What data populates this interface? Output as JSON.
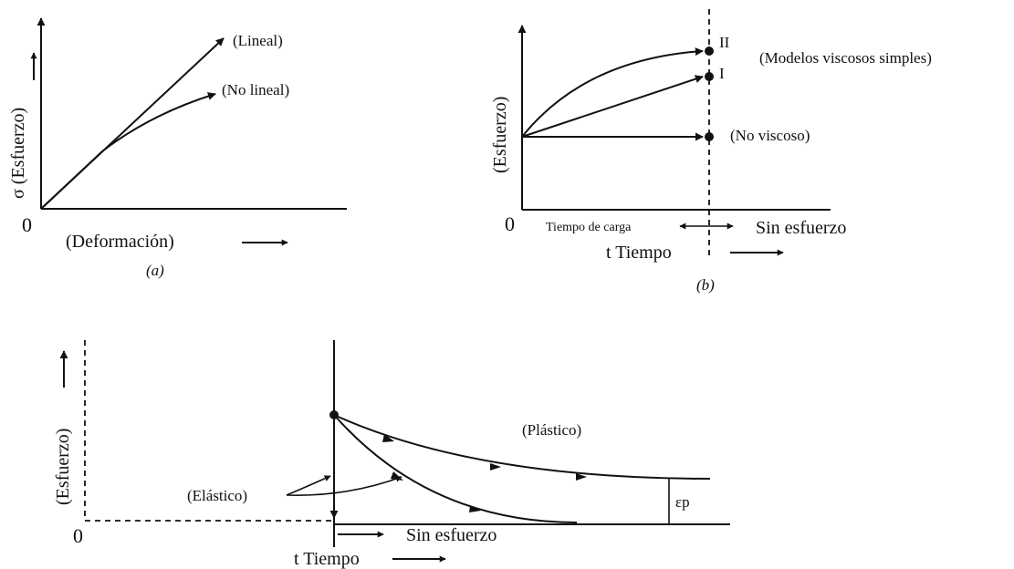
{
  "panel_a": {
    "origin": "0",
    "y_label": "σ (Esfuerzo)",
    "x_label": "(Deformación)",
    "caption": "(a)",
    "curve_linear": "(Lineal)",
    "curve_nonlinear": "(No lineal)"
  },
  "panel_b": {
    "origin": "0",
    "y_label": "(Esfuerzo)",
    "x_label": "t Tiempo",
    "caption": "(b)",
    "load_time": "Tiempo de carga",
    "no_stress": "Sin esfuerzo",
    "point_II": "II",
    "point_I": "I",
    "simple_viscous": "(Modelos viscosos simples)",
    "non_viscous": "(No viscoso)"
  },
  "panel_c": {
    "origin": "0",
    "y_label": "(Esfuerzo)",
    "x_label": "t Tiempo",
    "no_stress": "Sin esfuerzo",
    "plastic": "(Plástico)",
    "elastic": "(Elástico)",
    "eps_p": "εp"
  }
}
